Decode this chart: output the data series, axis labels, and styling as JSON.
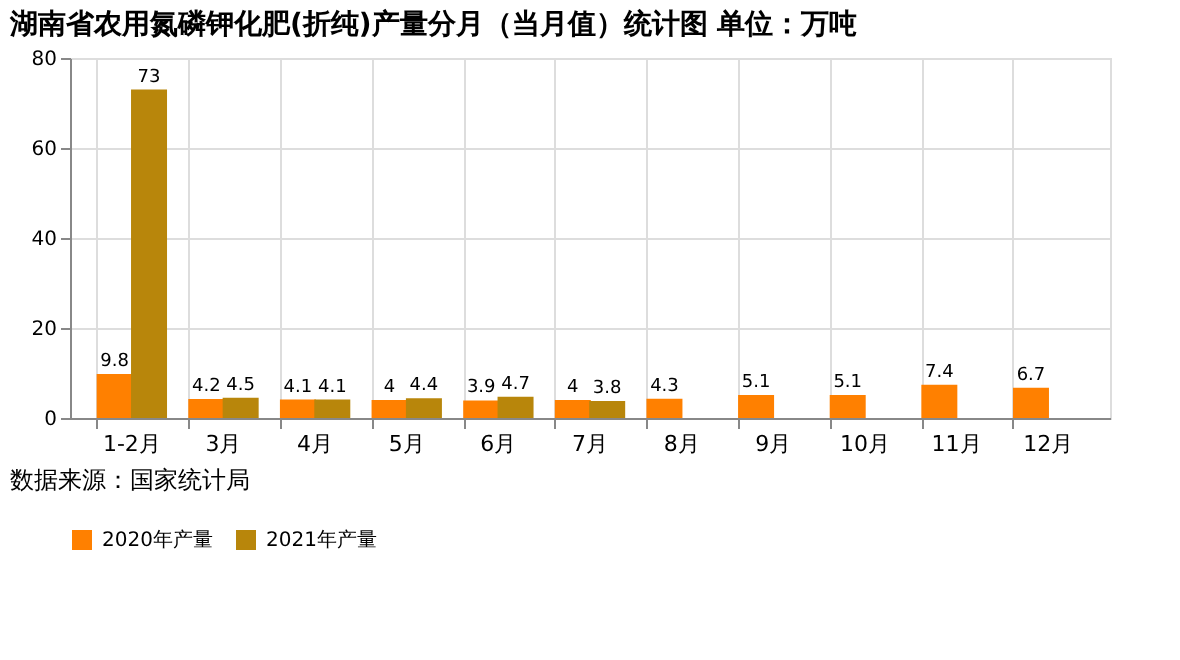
{
  "chart_data": {
    "type": "bar",
    "title": "湖南省农用氮磷钾化肥(折纯)产量分月（当月值）统计图 单位：万吨",
    "categories": [
      "1-2月",
      "3月",
      "4月",
      "5月",
      "6月",
      "7月",
      "8月",
      "9月",
      "10月",
      "11月",
      "12月"
    ],
    "series": [
      {
        "name": "2020年产量",
        "color": "#ff8000",
        "values": [
          9.8,
          4.2,
          4.1,
          4,
          3.9,
          4,
          4.3,
          5.1,
          5.1,
          7.4,
          6.7
        ]
      },
      {
        "name": "2021年产量",
        "color": "#b8860b",
        "values": [
          73,
          4.5,
          4.1,
          4.4,
          4.7,
          3.8,
          null,
          null,
          null,
          null,
          null
        ]
      }
    ],
    "ylim": [
      0,
      80
    ],
    "yticks": [
      0,
      20,
      40,
      60,
      80
    ],
    "grid": true,
    "legend": "bottom",
    "data_labels": true,
    "annotations": [
      "数据来源：国家统计局"
    ]
  }
}
